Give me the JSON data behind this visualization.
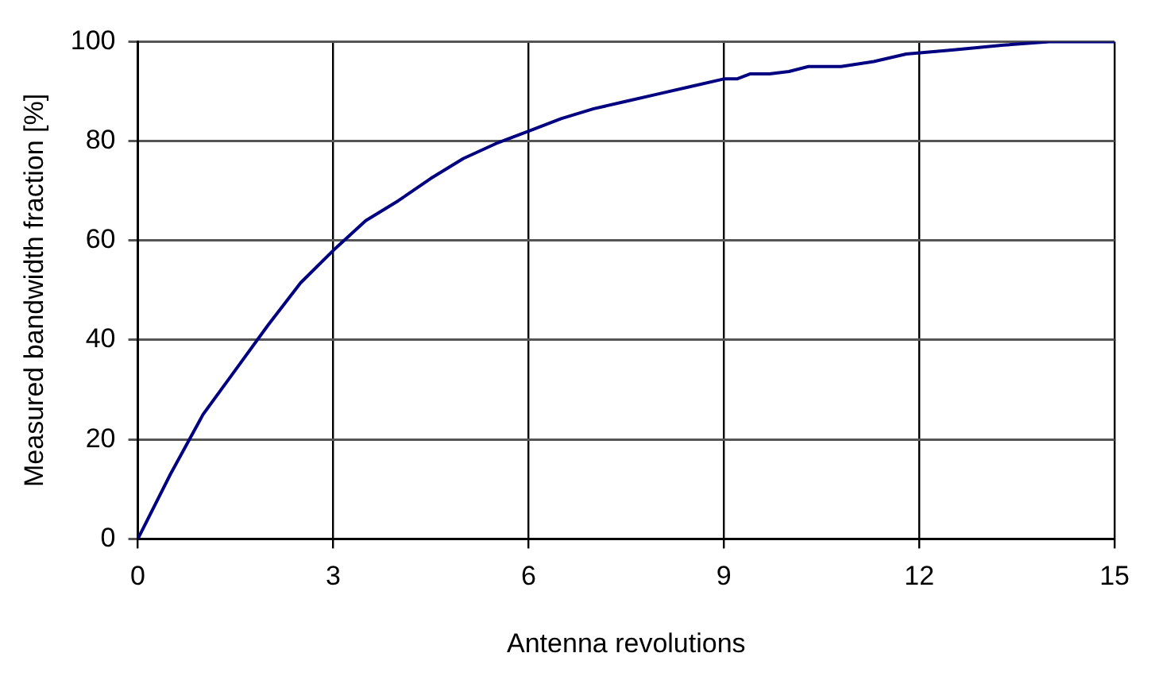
{
  "chart_data": {
    "type": "line",
    "xlabel": "Antenna revolutions",
    "ylabel": "Measured bandwidth fraction [%]",
    "series": [
      {
        "color": "#000080",
        "x": [
          0,
          0.5,
          1,
          1.5,
          2,
          2.5,
          3,
          3.5,
          4,
          4.5,
          5,
          5.5,
          6,
          6.5,
          7,
          7.5,
          8,
          8.5,
          9,
          9.2,
          9.4,
          9.7,
          10,
          10.3,
          10.8,
          11.3,
          11.8,
          12.5,
          13.3,
          14,
          15
        ],
        "values": [
          0,
          13,
          25,
          34,
          43,
          51.5,
          58,
          64,
          68,
          72.5,
          76.5,
          79.5,
          82,
          84.5,
          86.5,
          88,
          89.5,
          91,
          92.5,
          92.5,
          93.5,
          93.5,
          94,
          95,
          95,
          96,
          97.5,
          98.3,
          99.3,
          100,
          100
        ]
      }
    ],
    "xlim": [
      0,
      15
    ],
    "xticks": [
      0,
      3,
      6,
      9,
      12,
      15
    ],
    "ylim": [
      0,
      100
    ],
    "yticks": [
      0,
      20,
      40,
      60,
      80,
      100
    ],
    "grid": true,
    "legend": false,
    "marker": "none",
    "line_style": "solid"
  }
}
